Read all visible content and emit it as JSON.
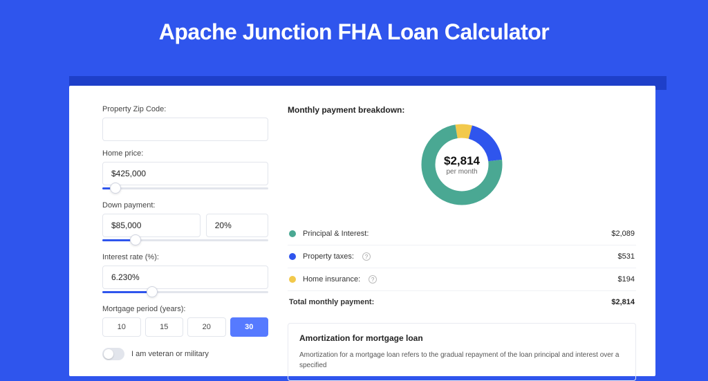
{
  "colors": {
    "page_bg": "#2f55ed",
    "shadow": "#1e3fc9",
    "card_bg": "#ffffff",
    "border": "#e2e5ec",
    "text": "#222222",
    "muted": "#666666",
    "accent": "#2f55ed",
    "period_selected_bg": "#567aff"
  },
  "title": "Apache Junction FHA Loan Calculator",
  "form": {
    "zip": {
      "label": "Property Zip Code:",
      "value": ""
    },
    "home_price": {
      "label": "Home price:",
      "value": "$425,000",
      "slider_pos_pct": 8
    },
    "down_payment": {
      "label": "Down payment:",
      "amount": "$85,000",
      "pct": "20%",
      "slider_pos_pct": 20
    },
    "interest": {
      "label": "Interest rate (%):",
      "value": "6.230%",
      "slider_pos_pct": 30
    },
    "period": {
      "label": "Mortgage period (years):",
      "options": [
        "10",
        "15",
        "20",
        "30"
      ],
      "selected": "30"
    },
    "veteran": {
      "label": "I am veteran or military",
      "checked": false
    }
  },
  "breakdown": {
    "title": "Monthly payment breakdown:",
    "center_amount": "$2,814",
    "center_sub": "per month",
    "donut": {
      "segments": [
        {
          "key": "principal_interest",
          "value": 2089,
          "color": "#4aa893"
        },
        {
          "key": "property_taxes",
          "value": 531,
          "color": "#2f55ed"
        },
        {
          "key": "home_insurance",
          "value": 194,
          "color": "#f2c94c"
        }
      ],
      "stroke_width": 20,
      "bg": "#ffffff"
    },
    "rows": [
      {
        "label": "Principal & Interest:",
        "value": "$2,089",
        "color": "#4aa893",
        "info": false
      },
      {
        "label": "Property taxes:",
        "value": "$531",
        "color": "#2f55ed",
        "info": true
      },
      {
        "label": "Home insurance:",
        "value": "$194",
        "color": "#f2c94c",
        "info": true
      }
    ],
    "total": {
      "label": "Total monthly payment:",
      "value": "$2,814"
    }
  },
  "amortization": {
    "title": "Amortization for mortgage loan",
    "text": "Amortization for a mortgage loan refers to the gradual repayment of the loan principal and interest over a specified"
  }
}
